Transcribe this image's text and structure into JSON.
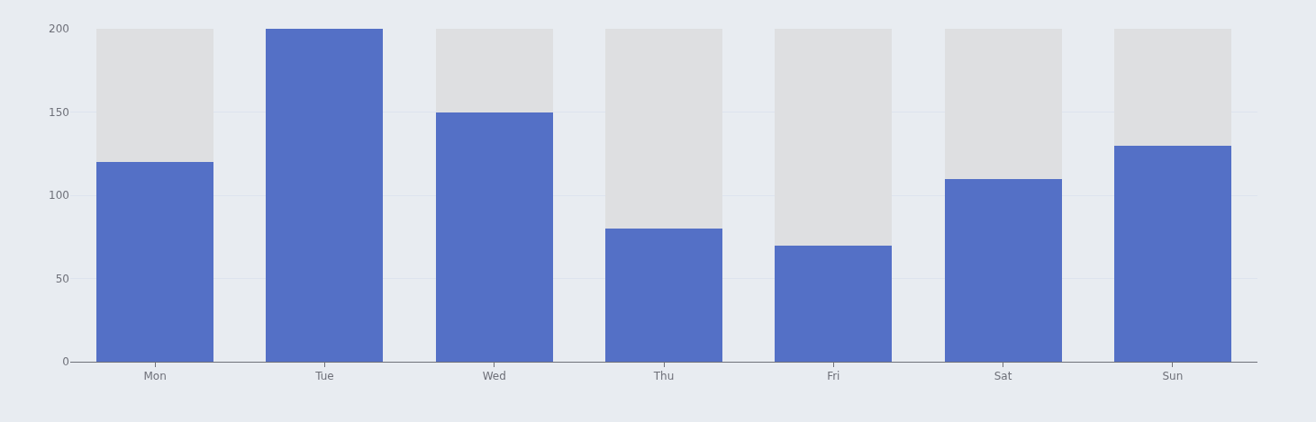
{
  "chart_data": {
    "type": "bar",
    "stacked": true,
    "categories": [
      "Mon",
      "Tue",
      "Wed",
      "Thu",
      "Fri",
      "Sat",
      "Sun"
    ],
    "series": [
      {
        "color": "#5470c6",
        "values": [
          120,
          200,
          150,
          80,
          70,
          110,
          130
        ]
      },
      {
        "color": "#dedfe1",
        "values": [
          80,
          0,
          50,
          120,
          130,
          90,
          70
        ]
      }
    ],
    "ylim": [
      0,
      200
    ],
    "yticks": [
      0,
      50,
      100,
      150,
      200
    ],
    "grid": "y"
  }
}
